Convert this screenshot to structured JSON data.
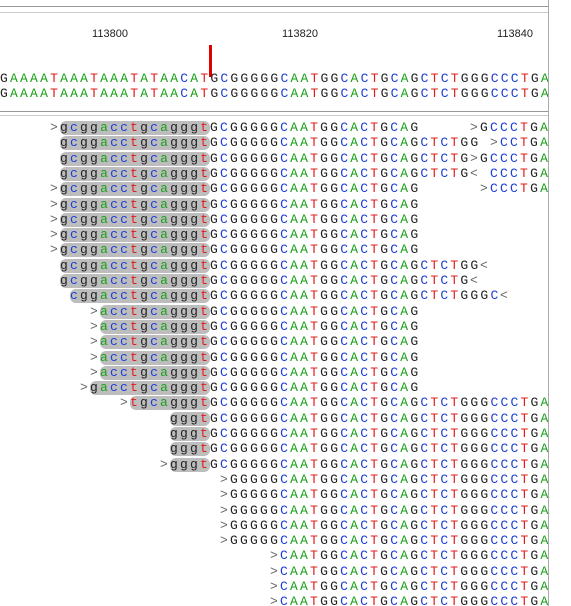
{
  "ruler": {
    "ticks": [
      "113800",
      "113820",
      "113840"
    ]
  },
  "reference": [
    "GAAAATAAATAAATATAACATGCGGGGGCAATGGCACTGCAGCTCTGGGCCCTGA",
    "GAAAATAAATAAATATAACATGCGGGGGCAATGGCACTGCAGCTCTGGGCCCTGA"
  ],
  "reads": [
    [
      ">",
      "gcggacctgcagggt",
      "GCGGGGGCAATGGCACTGCAG",
      ">",
      "GCCCTGA"
    ],
    [
      "gcggacctgcagggt",
      "GCGGGGGCAATGGCACTGCAGCTCTGG",
      ">",
      "CCTGA"
    ],
    [
      "gcggacctgcagggt",
      "GCGGGGGCAATGGCACTGCAGCTCTG",
      ">",
      "GCCCTGA"
    ],
    [
      "gcggacctgcagggt",
      "GCGGGGGCAATGGCACTGCAGCTCTG",
      "<",
      "CCCTGA"
    ],
    [
      ">",
      "gcggacctgcagggt",
      "GCGGGGGCAATGGCACTGCAG",
      ">",
      "CCCTGA"
    ],
    [
      ">",
      "gcggacctgcagggt",
      "GCGGGGGCAATGGCACTGCAG"
    ],
    [
      ">",
      "gcggacctgcagggt",
      "GCGGGGGCAATGGCACTGCAG"
    ],
    [
      ">",
      "gcggacctgcagggt",
      "GCGGGGGCAATGGCACTGCAG"
    ],
    [
      ">",
      "gcggacctgcagggt",
      "GCGGGGGCAATGGCACTGCAG"
    ],
    [
      "gcggacctgcagggt",
      "GCGGGGGCAATGGCACTGCAGCTCTGG",
      "<"
    ],
    [
      "gcggacctgcagggt",
      "GCGGGGGCAATGGCACTGCAGCTCTG",
      "<"
    ],
    [
      "cggacctgcagggt",
      "GCGGGGGCAATGGCACTGCAGCTCTGGGC",
      "<"
    ],
    [
      ">",
      "acctgcagggt",
      "GCGGGGGCAATGGCACTGCAG"
    ],
    [
      ">",
      "acctgcagggt",
      "GCGGGGGCAATGGCACTGCAG"
    ],
    [
      ">",
      "acctgcagggt",
      "GCGGGGGCAATGGCACTGCAG"
    ],
    [
      ">",
      "acctgcagggt",
      "GCGGGGGCAATGGCACTGCAG"
    ],
    [
      ">",
      "acctgcagggt",
      "GCGGGGGCAATGGCACTGCAG"
    ],
    [
      ">",
      "gacctgcagggt",
      "GCGGGGGCAATGGCACTGCAG"
    ],
    [
      ">",
      "tgcagggt",
      "GCGGGGGCAATGGCACTGCAGCTCTGGGCCCTGA"
    ],
    [
      "gggt",
      "GCGGGGGCAATGGCACTGCAGCTCTGGGCCCTGA"
    ],
    [
      "gggt",
      "GCGGGGGCAATGGCACTGCAGCTCTGGGCCCTGA"
    ],
    [
      "gggt",
      "GCGGGGGCAATGGCACTGCAGCTCTGGGCCCTGA"
    ],
    [
      ">",
      "gggt",
      "GCGGGGGCAATGGCACTGCAGCTCTGGGCCCTGA"
    ],
    [
      ">",
      "GGGGGCAATGGCACTGCAGCTCTGGGCCCTGA"
    ],
    [
      ">",
      "GGGGGCAATGGCACTGCAGCTCTGGGCCCTGA"
    ],
    [
      ">",
      "GGGGGCAATGGCACTGCAGCTCTGGGCCCTGA"
    ],
    [
      ">",
      "GGGGGCAATGGCACTGCAGCTCTGGGCCCTGA"
    ],
    [
      ">",
      "GGGGGCAATGGCACTGCAGCTCTGGGCCCTGA"
    ],
    [
      ">",
      "CAATGGCACTGCAGCTCTGGGCCCTGA"
    ],
    [
      ">",
      "CAATGGCACTGCAGCTCTGGGCCCTGA"
    ],
    [
      ">",
      "CAATGGCACTGCAGCTCTGGGCCCTGA"
    ],
    [
      ">",
      "CAATGGCACTGCAGCTCTGGGCCCTGA"
    ]
  ]
}
